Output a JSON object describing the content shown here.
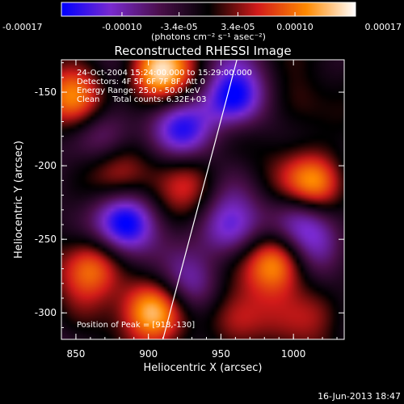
{
  "colorbar": {
    "ticks": [
      "-0.00017",
      "-0.00010",
      "-3.4e-05",
      "3.4e-05",
      "0.00010",
      "0.00017"
    ],
    "tick_values": [
      -0.00017,
      -0.0001,
      -3.4e-05,
      3.4e-05,
      0.0001,
      0.00017
    ],
    "range": [
      -0.00017,
      0.00017
    ],
    "unit_label": "(photons cm⁻² s⁻¹ asec⁻²)"
  },
  "chart_data": {
    "type": "heatmap",
    "title": "Reconstructed RHESSI Image",
    "xlabel": "Heliocentric X (arcsec)",
    "ylabel": "Heliocentric Y (arcsec)",
    "xlim": [
      840,
      1035
    ],
    "ylim": [
      -318,
      -128
    ],
    "x_ticks": [
      "850",
      "900",
      "950",
      "1000"
    ],
    "x_tick_values": [
      850,
      900,
      950,
      1000
    ],
    "y_ticks": [
      "-150",
      "-200",
      "-250",
      "-300"
    ],
    "y_tick_values": [
      -150,
      -200,
      -250,
      -300
    ],
    "colormap": [
      "#0000ff",
      "#7a2ad0",
      "#4b0f4b",
      "#000000",
      "#d21a1a",
      "#ff8a00",
      "#ffffff"
    ],
    "limb_line": [
      [
        910,
        -318
      ],
      [
        961,
        -128
      ]
    ],
    "sources": [
      {
        "x": 902,
        "y": -298,
        "value": 0.00017
      },
      {
        "x": 906,
        "y": -137,
        "value": 0.00016
      },
      {
        "x": 988,
        "y": -265,
        "value": 0.00017
      },
      {
        "x": 1016,
        "y": -212,
        "value": 0.00015
      },
      {
        "x": 850,
        "y": -155,
        "value": 0.00013
      },
      {
        "x": 860,
        "y": -268,
        "value": 0.00012
      },
      {
        "x": 930,
        "y": -210,
        "value": 7e-05
      },
      {
        "x": 880,
        "y": -205,
        "value": 8e-05
      },
      {
        "x": 1000,
        "y": -160,
        "value": 6e-05
      },
      {
        "x": 958,
        "y": -305,
        "value": 9e-05
      },
      {
        "x": 1020,
        "y": -300,
        "value": 8e-05
      },
      {
        "x": 958,
        "y": -155,
        "value": -0.00017
      },
      {
        "x": 885,
        "y": -240,
        "value": -0.00016
      },
      {
        "x": 955,
        "y": -245,
        "value": -0.00011
      },
      {
        "x": 1005,
        "y": -235,
        "value": -0.0001
      },
      {
        "x": 870,
        "y": -180,
        "value": -9e-05
      },
      {
        "x": 925,
        "y": -175,
        "value": -0.0001
      },
      {
        "x": 1020,
        "y": -255,
        "value": -9e-05
      },
      {
        "x": 930,
        "y": -280,
        "value": -8e-05
      }
    ],
    "annotations": {
      "time": "24-Oct-2004 15:24:00.000 to 15:29:00.000",
      "detectors": "Detectors: 4F 5F 6F 7F 8F, Att 0",
      "energy": "Energy Range: 25.0 - 50.0 keV",
      "clean": "Clean     Total counts: 6.32E+03",
      "peak": "Position of Peak = [918,-130]"
    }
  },
  "footer": {
    "date": "16-Jun-2013 18:47"
  }
}
